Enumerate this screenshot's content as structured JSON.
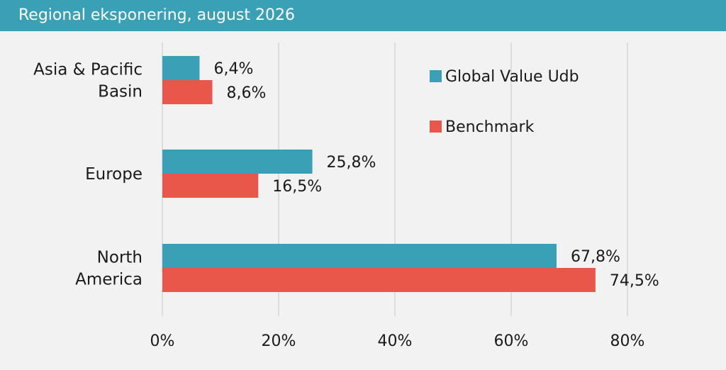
{
  "header": {
    "title": "Regional eksponering, august 2026"
  },
  "colors": {
    "header_bg": "#39a0b6",
    "series_1": "#39a0b6",
    "series_2": "#e8574a",
    "grid": "#d6d6d6",
    "background": "#f2f2f2"
  },
  "chart_data": {
    "type": "bar",
    "orientation": "horizontal",
    "title": "Regional eksponering, august 2026",
    "categories": [
      [
        "Asia & Pacific",
        "Basin"
      ],
      [
        "Europe"
      ],
      [
        "North",
        "America"
      ]
    ],
    "series": [
      {
        "name": "Global Value Udb",
        "values": [
          6.4,
          25.8,
          67.8
        ],
        "labels": [
          "6,4%",
          "25,8%",
          "67,8%"
        ],
        "color": "#39a0b6"
      },
      {
        "name": "Benchmark",
        "values": [
          8.6,
          16.5,
          74.5
        ],
        "labels": [
          "8,6%",
          "16,5%",
          "74,5%"
        ],
        "color": "#e8574a"
      }
    ],
    "xlim": [
      0,
      80
    ],
    "ticks": [
      0,
      20,
      40,
      60,
      80
    ],
    "tick_labels": [
      "0%",
      "20%",
      "40%",
      "60%",
      "80%"
    ],
    "grid": true,
    "legend": "top-right"
  }
}
